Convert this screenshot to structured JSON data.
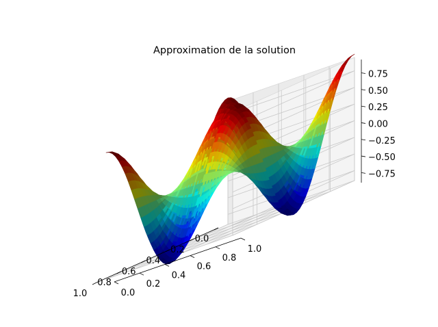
{
  "chart_data": {
    "type": "surface3d",
    "title": "Approximation de la solution",
    "xlabel": "",
    "ylabel": "",
    "zlabel": "",
    "xlim": [
      0,
      1
    ],
    "ylim": [
      0,
      1
    ],
    "zlim": [
      -0.9,
      0.95
    ],
    "x_ticks": [
      "0.0",
      "0.2",
      "0.4",
      "0.6",
      "0.8",
      "1.0"
    ],
    "y_ticks": [
      "0.0",
      "0.2",
      "0.4",
      "0.6",
      "0.8",
      "1.0"
    ],
    "z_ticks": [
      "−0.75",
      "−0.50",
      "−0.25",
      "0.00",
      "0.25",
      "0.50",
      "0.75"
    ],
    "function": "z = cos(2*pi*x) * cos(2*pi*y) (approx)",
    "grid": true,
    "colormap": "jet",
    "legend": "none"
  }
}
